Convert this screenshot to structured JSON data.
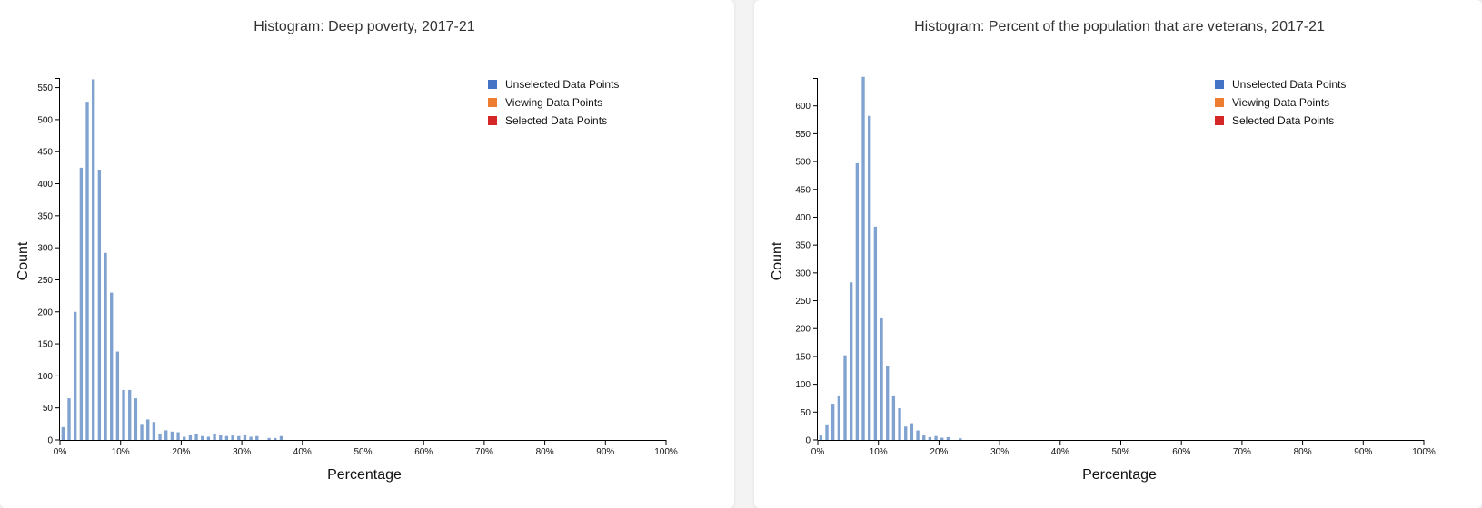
{
  "legend": {
    "items": [
      {
        "label": "Unselected Data Points",
        "color": "#4472c4"
      },
      {
        "label": "Viewing Data Points",
        "color": "#ed7d31"
      },
      {
        "label": "Selected Data Points",
        "color": "#d62728"
      }
    ]
  },
  "colors": {
    "bar": "#7fa2d0",
    "axis": "#000000"
  },
  "chart_data": [
    {
      "type": "bar",
      "title": "Histogram: Deep poverty, 2017-21",
      "xlabel": "Percentage",
      "ylabel": "Count",
      "xlim": [
        0,
        100
      ],
      "ylim": [
        0,
        565
      ],
      "x_ticks": [
        0,
        10,
        20,
        30,
        40,
        50,
        60,
        70,
        80,
        90,
        100
      ],
      "x_tick_labels": [
        "0%",
        "10%",
        "20%",
        "30%",
        "40%",
        "50%",
        "60%",
        "70%",
        "80%",
        "90%",
        "100%"
      ],
      "y_ticks": [
        0,
        50,
        100,
        150,
        200,
        250,
        300,
        350,
        400,
        450,
        500,
        550
      ],
      "y_tick_labels": [
        "0",
        "50",
        "100",
        "150",
        "200",
        "250",
        "300",
        "350",
        "400",
        "450",
        "500",
        "550"
      ],
      "bin_width": 1,
      "categories": [
        0,
        1,
        2,
        3,
        4,
        5,
        6,
        7,
        8,
        9,
        10,
        11,
        12,
        13,
        14,
        15,
        16,
        17,
        18,
        19,
        20,
        21,
        22,
        23,
        24,
        25,
        26,
        27,
        28,
        29,
        30,
        31,
        32,
        33,
        34,
        35,
        36
      ],
      "values": [
        20,
        65,
        200,
        425,
        528,
        563,
        422,
        292,
        230,
        138,
        78,
        78,
        65,
        25,
        32,
        28,
        10,
        15,
        13,
        12,
        5,
        8,
        10,
        6,
        5,
        10,
        8,
        6,
        7,
        6,
        8,
        5,
        6,
        0,
        3,
        3,
        6
      ]
    },
    {
      "type": "bar",
      "title": "Histogram: Percent of the population that are veterans, 2017-21",
      "xlabel": "Percentage",
      "ylabel": "Count",
      "xlim": [
        0,
        100
      ],
      "ylim": [
        0,
        650
      ],
      "x_ticks": [
        0,
        10,
        20,
        30,
        40,
        50,
        60,
        70,
        80,
        90,
        100
      ],
      "x_tick_labels": [
        "0%",
        "10%",
        "20%",
        "30%",
        "40%",
        "50%",
        "60%",
        "70%",
        "80%",
        "90%",
        "100%"
      ],
      "y_ticks": [
        0,
        50,
        100,
        150,
        200,
        250,
        300,
        350,
        400,
        450,
        500,
        550,
        600
      ],
      "y_tick_labels": [
        "0",
        "50",
        "100",
        "150",
        "200",
        "250",
        "300",
        "350",
        "400",
        "450",
        "500",
        "550",
        "600"
      ],
      "bin_width": 1,
      "categories": [
        0,
        1,
        2,
        3,
        4,
        5,
        6,
        7,
        8,
        9,
        10,
        11,
        12,
        13,
        14,
        15,
        16,
        17,
        18,
        19,
        20,
        21,
        22,
        23
      ],
      "values": [
        8,
        28,
        65,
        80,
        152,
        283,
        497,
        652,
        582,
        383,
        220,
        133,
        80,
        57,
        24,
        30,
        17,
        8,
        5,
        7,
        4,
        5,
        0,
        3
      ]
    }
  ]
}
